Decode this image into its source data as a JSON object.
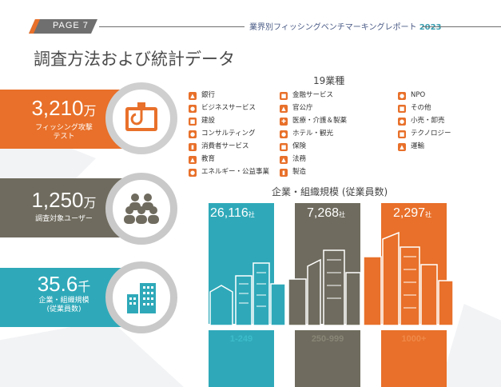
{
  "header": {
    "page_label": "PAGE 7",
    "report_title": "業界別フィッシングベンチマーキングレポート",
    "report_year": "2023"
  },
  "page_title": "調査方法および統計データ",
  "stats": [
    {
      "number": "3,210",
      "unit": "万",
      "label_line1": "フィッシング攻撃",
      "label_line2": "テスト",
      "icon": "phishing-hook-icon",
      "color": "#e8702a"
    },
    {
      "number": "1,250",
      "unit": "万",
      "label_line1": "調査対象ユーザー",
      "label_line2": "",
      "icon": "users-group-icon",
      "color": "#6f6b5e"
    },
    {
      "number": "35.6",
      "unit": "千",
      "label_line1": "企業・組織規模",
      "label_line2": "(従業員数)",
      "icon": "buildings-icon",
      "color": "#2fa9b9"
    }
  ],
  "industries": {
    "title": "19業種",
    "col1": [
      "銀行",
      "ビジネスサービス",
      "建設",
      "コンサルティング",
      "消費者サービス",
      "教育",
      "エネルギー・公益事業"
    ],
    "col2": [
      "金融サービス",
      "官公庁",
      "医療・介護＆製薬",
      "ホテル・観光",
      "保険",
      "法務",
      "製造"
    ],
    "col3": [
      "NPO",
      "その他",
      "小売・卸売",
      "テクノロジー",
      "運輸"
    ]
  },
  "org_size": {
    "title": "企業・組織規模 (従業員数)",
    "columns": [
      {
        "value": "26,116",
        "unit": "社",
        "range": "1-249",
        "color": "#2fa9b9"
      },
      {
        "value": "7,268",
        "unit": "社",
        "range": "250-999",
        "color": "#6f6b5e"
      },
      {
        "value": "2,297",
        "unit": "社",
        "range": "1000+",
        "color": "#e8702a"
      }
    ]
  }
}
